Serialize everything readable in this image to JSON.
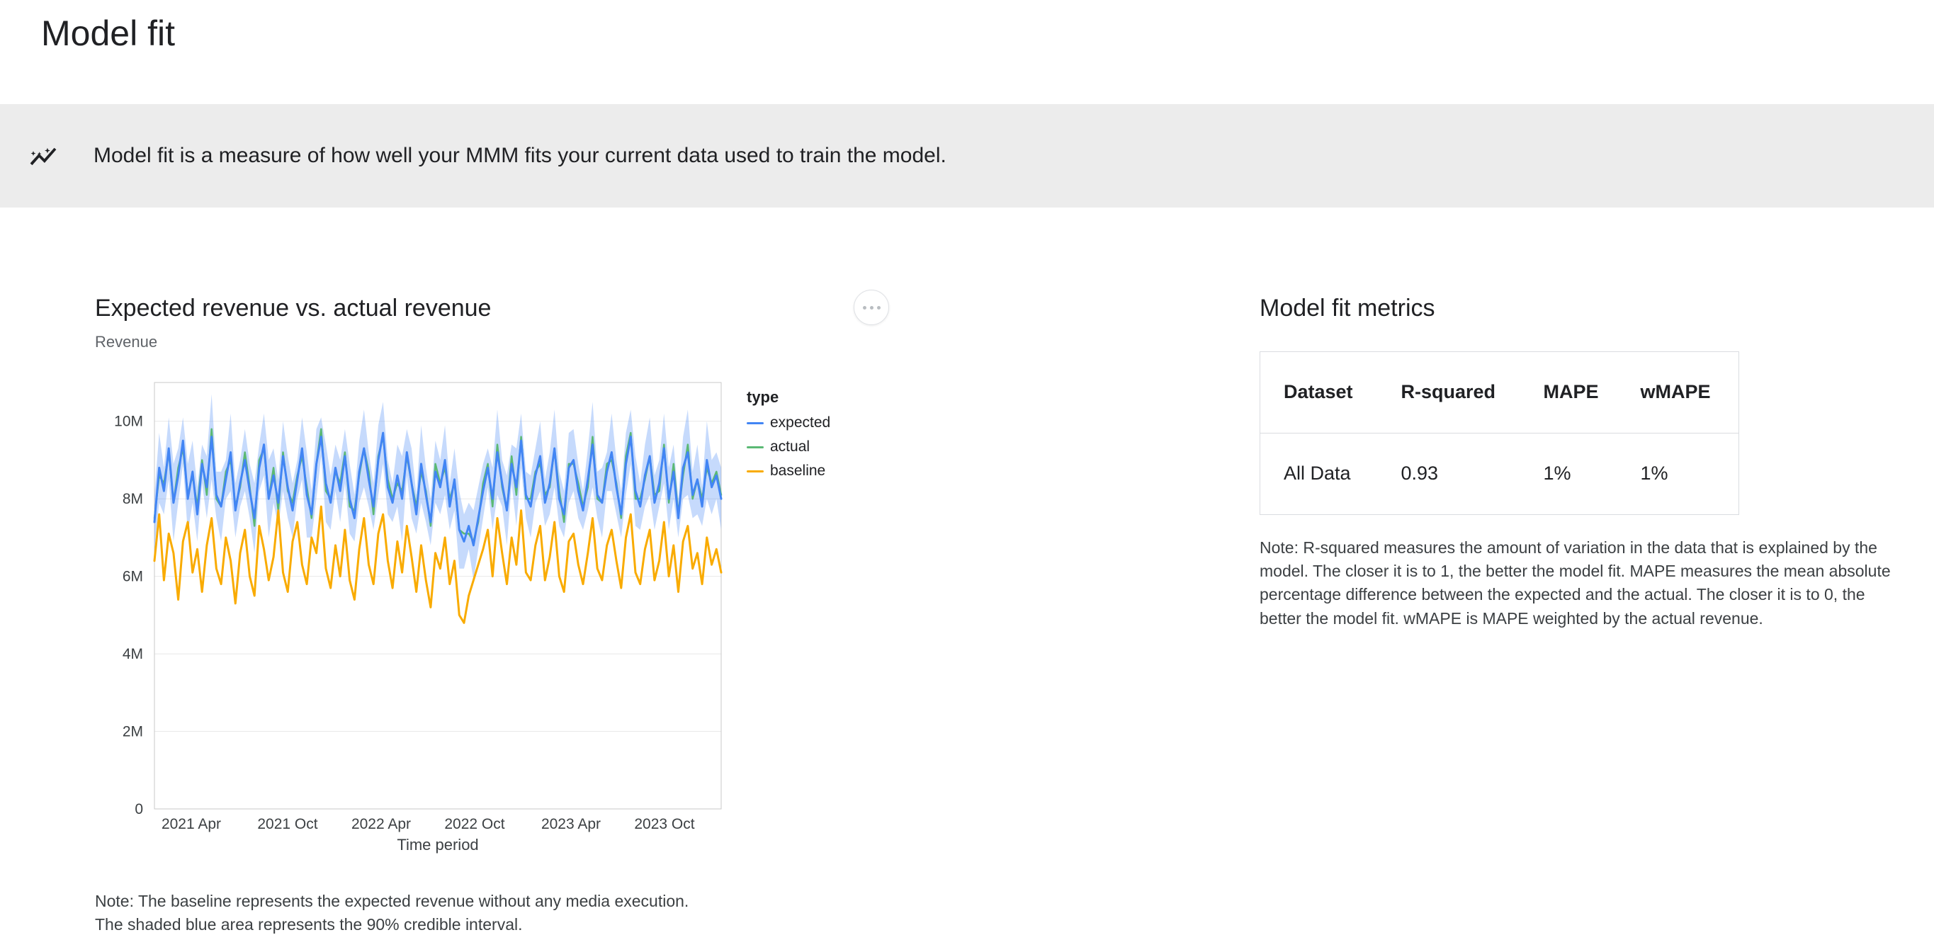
{
  "page": {
    "title": "Model fit"
  },
  "banner": {
    "icon": "auto-graph-icon",
    "text": "Model fit is a measure of how well your MMM fits your current data used to train the model."
  },
  "chart_card": {
    "title": "Expected revenue vs. actual revenue",
    "subtitle": "Revenue",
    "menu_icon": "more-options-icon",
    "note_line1": "Note: The baseline represents the expected revenue without any media execution.",
    "note_line2": "The shaded blue area represents the 90% credible interval."
  },
  "legend": {
    "title": "type",
    "items": [
      {
        "label": "expected",
        "color": "#4285f4"
      },
      {
        "label": "actual",
        "color": "#5bb974"
      },
      {
        "label": "baseline",
        "color": "#f9ab00"
      }
    ]
  },
  "chart_data": {
    "type": "line",
    "title": "Expected revenue vs. actual revenue",
    "xlabel": "Time period",
    "ylabel": "Revenue",
    "y_unit": "millions",
    "ylim": [
      0,
      11
    ],
    "grid": true,
    "legend_position": "right",
    "yticks": [
      {
        "value": 0,
        "label": "0"
      },
      {
        "value": 2,
        "label": "2M"
      },
      {
        "value": 4,
        "label": "4M"
      },
      {
        "value": 6,
        "label": "6M"
      },
      {
        "value": 8,
        "label": "8M"
      },
      {
        "value": 10,
        "label": "10M"
      }
    ],
    "xticks": [
      {
        "pos": 0.065,
        "label": "2021 Apr"
      },
      {
        "pos": 0.235,
        "label": "2021 Oct"
      },
      {
        "pos": 0.4,
        "label": "2022 Apr"
      },
      {
        "pos": 0.565,
        "label": "2022 Oct"
      },
      {
        "pos": 0.735,
        "label": "2023 Apr"
      },
      {
        "pos": 0.9,
        "label": "2023 Oct"
      }
    ],
    "band": {
      "label": "90% credible interval",
      "color": "rgba(66,133,244,0.3)",
      "halfwidths": [
        0.7,
        0.9,
        0.6,
        0.8,
        1.0,
        0.7,
        0.6,
        0.9,
        0.8,
        0.7,
        0.5,
        0.8,
        1.1,
        0.6,
        0.9,
        0.5,
        1.0,
        0.7,
        0.6,
        0.8,
        0.7,
        0.9,
        0.6,
        0.8,
        1.0,
        0.7,
        0.6,
        0.9,
        0.8,
        0.7,
        0.5,
        0.8,
        1.1,
        0.6,
        0.9,
        0.5,
        1.0,
        0.7,
        0.6,
        0.8,
        0.7,
        0.9,
        0.6,
        0.8,
        1.0,
        0.7,
        0.6,
        0.9,
        0.8,
        0.7,
        0.5,
        0.8,
        1.1,
        0.6,
        0.9,
        0.5,
        1.0,
        0.7,
        0.6,
        0.8,
        0.7,
        0.9,
        0.6,
        0.8,
        1.0,
        0.7,
        0.6,
        0.9,
        0.8,
        0.7,
        0.5,
        0.8,
        1.1,
        0.6,
        0.9,
        0.5,
        1.0,
        0.7,
        0.6,
        0.8,
        0.7,
        0.9,
        0.6,
        0.8,
        1.0,
        0.7,
        0.6,
        0.9,
        0.8,
        0.7,
        0.5,
        0.8,
        1.1,
        0.6,
        0.9,
        0.5,
        1.0,
        0.7,
        0.6,
        0.8,
        0.7,
        0.9,
        0.6,
        0.8,
        1.0,
        0.7,
        0.6,
        0.9,
        0.8,
        0.7,
        0.5,
        0.8,
        1.1,
        0.6,
        0.9,
        0.5,
        1.0,
        0.7,
        0.6,
        0.8
      ]
    },
    "series": [
      {
        "name": "expected",
        "color": "#4285f4",
        "width": 3,
        "z": 2,
        "values": [
          7.4,
          8.8,
          8.2,
          9.3,
          7.9,
          8.6,
          9.5,
          8.0,
          8.7,
          7.6,
          8.9,
          8.3,
          9.6,
          8.1,
          7.8,
          8.5,
          9.2,
          7.7,
          8.4,
          9.0,
          8.2,
          7.5,
          8.8,
          9.4,
          8.0,
          8.6,
          7.9,
          9.1,
          8.3,
          7.7,
          8.5,
          9.3,
          8.1,
          7.6,
          8.9,
          9.6,
          8.4,
          7.9,
          8.8,
          8.2,
          9.1,
          8.0,
          7.5,
          8.7,
          9.3,
          8.5,
          7.8,
          9.0,
          9.7,
          8.3,
          7.9,
          8.6,
          8.0,
          9.2,
          8.4,
          7.6,
          8.9,
          8.1,
          7.4,
          8.7,
          8.3,
          9.0,
          7.8,
          8.5,
          7.2,
          6.9,
          7.3,
          6.8,
          7.5,
          8.2,
          8.8,
          8.0,
          9.2,
          8.4,
          7.7,
          8.9,
          8.3,
          9.5,
          8.1,
          7.8,
          8.6,
          9.1,
          7.9,
          8.4,
          9.3,
          8.0,
          7.6,
          8.8,
          9.0,
          8.2,
          7.7,
          8.5,
          9.4,
          8.1,
          7.9,
          8.7,
          9.2,
          8.3,
          7.6,
          8.9,
          9.6,
          8.2,
          7.8,
          8.6,
          9.1,
          7.9,
          8.4,
          9.3,
          8.0,
          8.7,
          7.5,
          8.8,
          9.2,
          8.1,
          8.5,
          7.8,
          9.0,
          8.3,
          8.6,
          8.0
        ]
      },
      {
        "name": "actual",
        "color": "#5bb974",
        "width": 2.5,
        "z": 1,
        "values": [
          7.5,
          8.6,
          8.4,
          9.2,
          7.9,
          8.8,
          9.3,
          8.1,
          8.6,
          7.8,
          9.0,
          8.1,
          9.8,
          8.0,
          7.8,
          8.7,
          9.0,
          7.8,
          8.3,
          9.2,
          8.3,
          7.3,
          9.0,
          9.3,
          8.0,
          8.8,
          7.7,
          9.2,
          8.2,
          7.9,
          8.6,
          9.1,
          8.3,
          7.5,
          8.9,
          9.8,
          8.2,
          8.0,
          8.7,
          8.4,
          9.2,
          7.8,
          7.7,
          8.6,
          9.3,
          8.7,
          7.6,
          9.1,
          9.6,
          8.5,
          8.0,
          8.4,
          8.2,
          9.1,
          8.4,
          7.8,
          8.7,
          8.2,
          7.3,
          8.9,
          8.4,
          8.8,
          8.0,
          8.4,
          7.2,
          7.1,
          7.1,
          6.9,
          7.4,
          8.4,
          8.9,
          7.8,
          9.4,
          8.3,
          7.7,
          9.1,
          8.1,
          9.6,
          8.0,
          8.0,
          8.7,
          8.9,
          8.1,
          8.3,
          9.3,
          8.2,
          7.4,
          8.9,
          8.9,
          8.4,
          7.8,
          8.3,
          9.6,
          8.0,
          7.9,
          8.9,
          9.0,
          8.4,
          7.5,
          9.1,
          9.7,
          8.0,
          8.0,
          8.5,
          9.1,
          8.1,
          8.2,
          9.4,
          7.9,
          8.9,
          7.6,
          8.6,
          9.4,
          8.0,
          8.5,
          8.0,
          8.8,
          8.4,
          8.7,
          8.1
        ]
      },
      {
        "name": "baseline",
        "color": "#f9ab00",
        "width": 3,
        "z": 3,
        "values": [
          6.4,
          7.6,
          5.9,
          7.1,
          6.6,
          5.4,
          6.9,
          7.4,
          6.1,
          6.7,
          5.6,
          6.8,
          7.5,
          6.2,
          5.8,
          7.0,
          6.4,
          5.3,
          6.6,
          7.2,
          6.0,
          5.5,
          7.3,
          6.7,
          5.9,
          6.5,
          7.7,
          6.1,
          5.6,
          6.9,
          7.4,
          6.3,
          5.8,
          7.0,
          6.6,
          7.8,
          6.2,
          5.7,
          6.8,
          6.0,
          7.2,
          5.9,
          5.4,
          6.7,
          7.5,
          6.3,
          5.8,
          7.1,
          7.6,
          6.4,
          5.7,
          6.9,
          6.1,
          7.3,
          6.5,
          5.6,
          6.8,
          5.9,
          5.2,
          6.6,
          6.2,
          7.0,
          5.8,
          6.4,
          5.0,
          4.8,
          5.5,
          5.9,
          6.3,
          6.7,
          7.2,
          6.0,
          7.5,
          6.6,
          5.8,
          7.0,
          6.3,
          7.7,
          6.1,
          5.9,
          6.8,
          7.3,
          5.9,
          6.5,
          7.4,
          6.0,
          5.6,
          6.9,
          7.1,
          6.3,
          5.8,
          6.6,
          7.5,
          6.2,
          5.9,
          6.8,
          7.2,
          6.4,
          5.7,
          7.0,
          7.6,
          6.1,
          5.8,
          6.7,
          7.2,
          5.9,
          6.4,
          7.4,
          6.0,
          6.8,
          5.6,
          6.9,
          7.3,
          6.2,
          6.6,
          5.8,
          7.0,
          6.3,
          6.7,
          6.1
        ]
      }
    ]
  },
  "metrics": {
    "title": "Model fit metrics",
    "table": {
      "headers": [
        "Dataset",
        "R-squared",
        "MAPE",
        "wMAPE"
      ],
      "rows": [
        [
          "All Data",
          "0.93",
          "1%",
          "1%"
        ]
      ]
    },
    "note": "Note: R-squared measures the amount of variation in the data that is explained by the model. The closer it is to 1, the better the model fit. MAPE measures the mean absolute percentage difference between the expected and the actual. The closer it is to 0, the better the model fit. wMAPE is MAPE weighted by the actual revenue."
  }
}
